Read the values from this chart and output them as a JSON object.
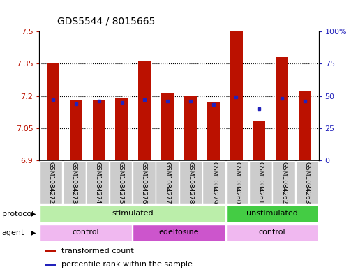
{
  "title": "GDS5544 / 8015665",
  "samples": [
    "GSM1084272",
    "GSM1084273",
    "GSM1084274",
    "GSM1084275",
    "GSM1084276",
    "GSM1084277",
    "GSM1084278",
    "GSM1084279",
    "GSM1084260",
    "GSM1084261",
    "GSM1084262",
    "GSM1084263"
  ],
  "transformed_counts": [
    7.35,
    7.18,
    7.18,
    7.19,
    7.36,
    7.21,
    7.2,
    7.17,
    7.5,
    7.08,
    7.38,
    7.22
  ],
  "percentile_ranks": [
    47,
    44,
    46,
    45,
    47,
    46,
    46,
    43,
    49,
    40,
    48,
    46
  ],
  "ylim_left": [
    6.9,
    7.5
  ],
  "ylim_right": [
    0,
    100
  ],
  "yticks_left": [
    6.9,
    7.05,
    7.2,
    7.35,
    7.5
  ],
  "ytick_labels_left": [
    "6.9",
    "7.05",
    "7.2",
    "7.35",
    "7.5"
  ],
  "ytick_labels_right": [
    "0",
    "25",
    "50",
    "75",
    "100%"
  ],
  "yticks_right": [
    0,
    25,
    50,
    75,
    100
  ],
  "bar_color": "#bb1100",
  "dot_color": "#2222bb",
  "bar_bottom": 6.9,
  "protocol_groups": [
    {
      "label": "stimulated",
      "start": 0,
      "end": 8,
      "color": "#bbeeaa"
    },
    {
      "label": "unstimulated",
      "start": 8,
      "end": 12,
      "color": "#44cc44"
    }
  ],
  "agent_groups": [
    {
      "label": "control",
      "start": 0,
      "end": 4,
      "color": "#f0b8f0"
    },
    {
      "label": "edelfosine",
      "start": 4,
      "end": 8,
      "color": "#cc55cc"
    },
    {
      "label": "control",
      "start": 8,
      "end": 12,
      "color": "#f0b8f0"
    }
  ],
  "legend_items": [
    {
      "label": "transformed count",
      "color": "#bb1100"
    },
    {
      "label": "percentile rank within the sample",
      "color": "#2222bb"
    }
  ],
  "label_area_color": "#cccccc",
  "bar_width": 0.55
}
